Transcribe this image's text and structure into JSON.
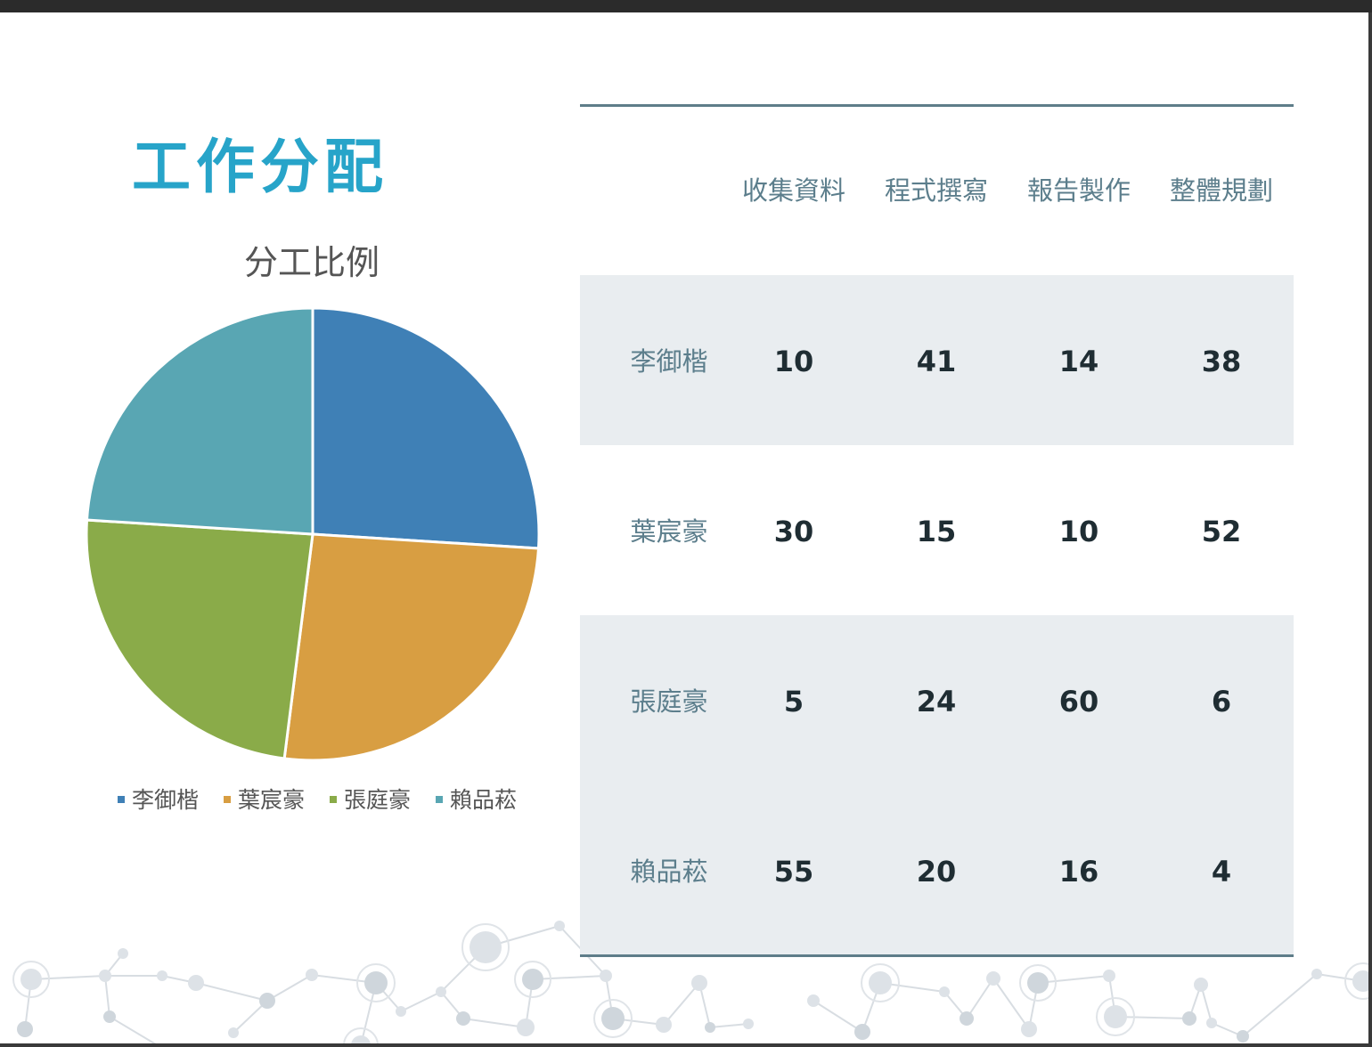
{
  "title": "工作分配",
  "colors": {
    "accent": "#27a4c9",
    "rule": "#5e7d89",
    "band": "#e9edf0",
    "header_text": "#5c7e8c",
    "value_text": "#1f2d33"
  },
  "chart_data": {
    "type": "pie",
    "title": "分工比例",
    "labels": [
      "李御楷",
      "葉宸豪",
      "張庭豪",
      "賴品菘"
    ],
    "values": [
      26,
      26,
      24,
      24
    ],
    "colors": [
      "#3f80b6",
      "#d89e42",
      "#8aab49",
      "#59a6b3"
    ],
    "legend": "bottom"
  },
  "table": {
    "columns": [
      "收集資料",
      "程式撰寫",
      "報告製作",
      "整體規劃"
    ],
    "rows": [
      {
        "name": "李御楷",
        "values": [
          "10",
          "41",
          "14",
          "38"
        ]
      },
      {
        "name": "葉宸豪",
        "values": [
          "30",
          "15",
          "10",
          "52"
        ]
      },
      {
        "name": "張庭豪",
        "values": [
          "5",
          "24",
          "60",
          "6"
        ]
      },
      {
        "name": "賴品菘",
        "values": [
          "55",
          "20",
          "16",
          "4"
        ]
      }
    ]
  }
}
